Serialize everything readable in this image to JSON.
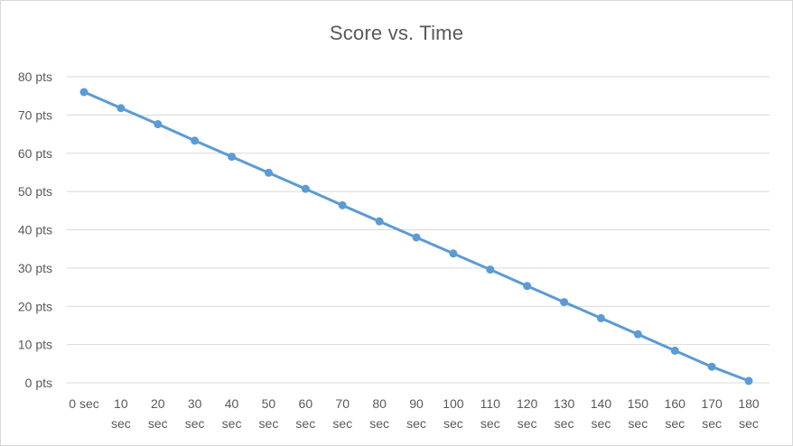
{
  "chart_data": {
    "type": "line",
    "title": "Score vs. Time",
    "xlabel": "",
    "ylabel": "",
    "x_tick_labels": [
      [
        "0 sec"
      ],
      [
        "10",
        "sec"
      ],
      [
        "20",
        "sec"
      ],
      [
        "30",
        "sec"
      ],
      [
        "40",
        "sec"
      ],
      [
        "50",
        "sec"
      ],
      [
        "60",
        "sec"
      ],
      [
        "70",
        "sec"
      ],
      [
        "80",
        "sec"
      ],
      [
        "90",
        "sec"
      ],
      [
        "100",
        "sec"
      ],
      [
        "110",
        "sec"
      ],
      [
        "120",
        "sec"
      ],
      [
        "130",
        "sec"
      ],
      [
        "140",
        "sec"
      ],
      [
        "150",
        "sec"
      ],
      [
        "160",
        "sec"
      ],
      [
        "170",
        "sec"
      ],
      [
        "180",
        "sec"
      ]
    ],
    "y_tick_labels": [
      "0 pts",
      "10 pts",
      "20 pts",
      "30 pts",
      "40 pts",
      "50 pts",
      "60 pts",
      "70 pts",
      "80 pts"
    ],
    "y_ticks": [
      0,
      10,
      20,
      30,
      40,
      50,
      60,
      70,
      80
    ],
    "ylim": [
      0,
      80
    ],
    "x": [
      0,
      10,
      20,
      30,
      40,
      50,
      60,
      70,
      80,
      90,
      100,
      110,
      120,
      130,
      140,
      150,
      160,
      170,
      180
    ],
    "series": [
      {
        "values": [
          76.0,
          71.8,
          67.6,
          63.3,
          59.1,
          54.9,
          50.7,
          46.4,
          42.2,
          38.0,
          33.8,
          29.6,
          25.3,
          21.1,
          16.9,
          12.7,
          8.4,
          4.2,
          0.5
        ],
        "color": "#5b9bd5"
      }
    ],
    "grid": true,
    "legend": "none",
    "colors": {
      "grid": "#d9d9d9",
      "text": "#595959",
      "series": "#5b9bd5"
    }
  }
}
